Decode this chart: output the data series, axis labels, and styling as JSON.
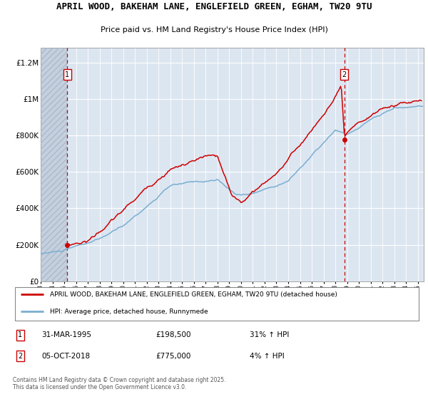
{
  "title1": "APRIL WOOD, BAKEHAM LANE, ENGLEFIELD GREEN, EGHAM, TW20 9TU",
  "title2": "Price paid vs. HM Land Registry's House Price Index (HPI)",
  "red_color": "#cc0000",
  "blue_color": "#7aaed0",
  "plot_bg": "#dce6f1",
  "grid_color": "#c0cfe0",
  "vline_color": "#cc0000",
  "point1_date_num": 1995.25,
  "point1_value": 198500,
  "point2_date_num": 2018.77,
  "point2_value": 775000,
  "xmin": 1993.0,
  "xmax": 2025.5,
  "ymin": 0,
  "ymax": 1280000,
  "yticks": [
    0,
    200000,
    400000,
    600000,
    800000,
    1000000,
    1200000
  ],
  "ytick_labels": [
    "£0",
    "£200K",
    "£400K",
    "£600K",
    "£800K",
    "£1M",
    "£1.2M"
  ],
  "legend_label_red": "APRIL WOOD, BAKEHAM LANE, ENGLEFIELD GREEN, EGHAM, TW20 9TU (detached house)",
  "legend_label_blue": "HPI: Average price, detached house, Runnymede",
  "footer": "Contains HM Land Registry data © Crown copyright and database right 2025.\nThis data is licensed under the Open Government Licence v3.0.",
  "hatch_xmax": 1995.25
}
